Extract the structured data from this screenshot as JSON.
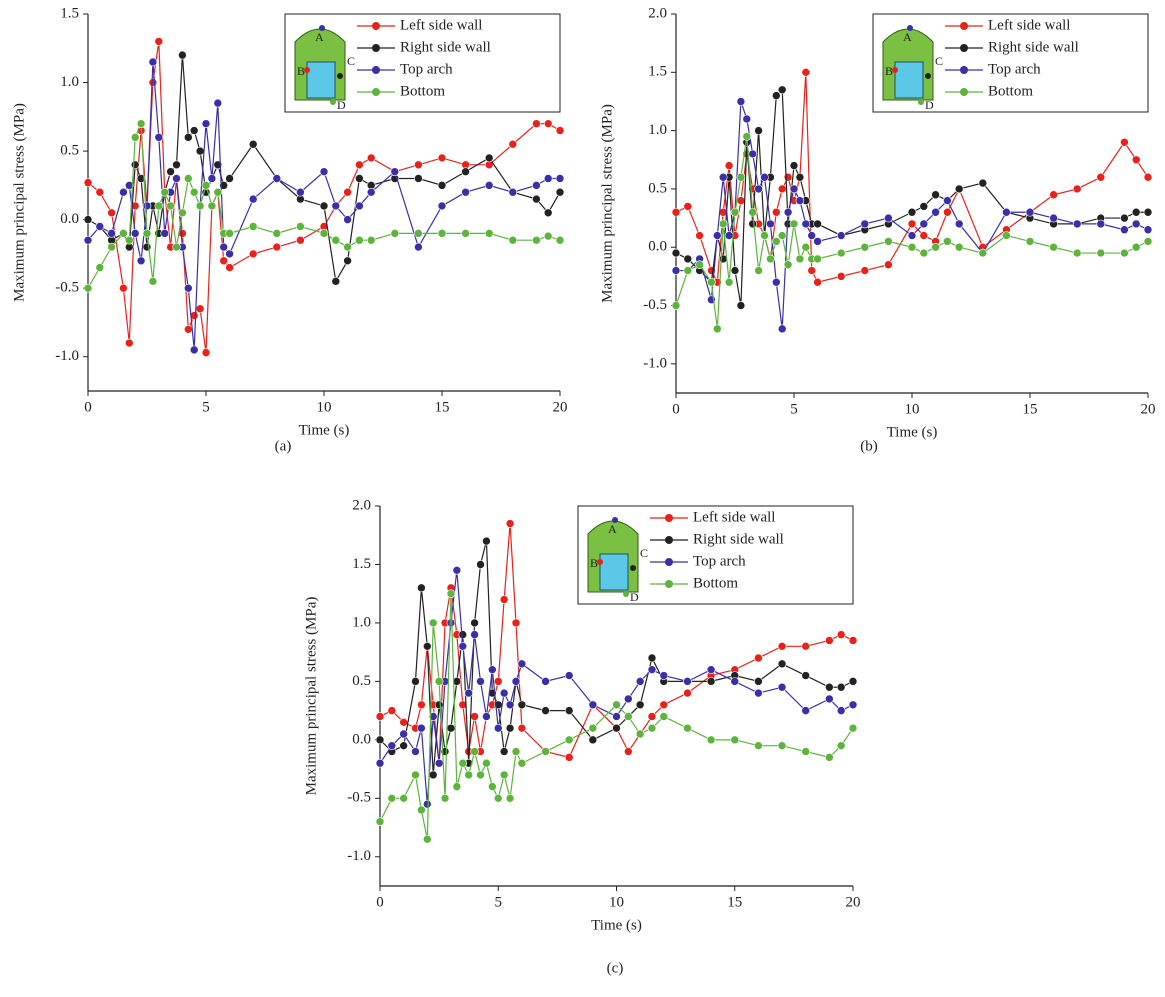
{
  "chart_data": [
    {
      "type": "line",
      "caption": "(a)",
      "x_label": "Time (s)",
      "y_label": "Maximum principal stress (MPa)",
      "inset_labels": [
        "A",
        "B",
        "C",
        "D"
      ],
      "legend": "upper right",
      "xlim": [
        0,
        20
      ],
      "xticks": [
        0,
        5,
        10,
        15,
        20
      ],
      "ylim": [
        -1.25,
        1.5
      ],
      "yticks": [
        {
          "value": -1,
          "label": "-1.0"
        },
        -0.5,
        {
          "value": 0,
          "label": "0.0"
        },
        0.5,
        {
          "value": 1,
          "label": "1.0"
        },
        1.5
      ],
      "x": [
        0,
        0.5,
        1,
        1.5,
        1.75,
        2,
        2.25,
        2.5,
        2.75,
        3,
        3.25,
        3.5,
        3.75,
        4,
        4.25,
        4.5,
        4.75,
        5,
        5.25,
        5.5,
        5.75,
        6,
        7,
        8,
        9,
        10,
        10.5,
        11,
        11.5,
        12,
        13,
        14,
        15,
        16,
        17,
        18,
        19,
        19.5,
        20
      ],
      "series": [
        {
          "name": "Left side wall",
          "color": "#e8221b",
          "values": [
            0.27,
            0.2,
            0.05,
            -0.5,
            -0.9,
            0.1,
            0.65,
            0.1,
            1.0,
            1.3,
            0.2,
            -0.2,
            0.3,
            -0.1,
            -0.8,
            -0.7,
            -0.65,
            -0.97,
            0.1,
            0.2,
            -0.3,
            -0.35,
            -0.25,
            -0.2,
            -0.15,
            -0.05,
            0.1,
            0.2,
            0.4,
            0.45,
            0.35,
            0.4,
            0.45,
            0.4,
            0.4,
            0.55,
            0.7,
            0.7,
            0.65
          ]
        },
        {
          "name": "Right side wall",
          "color": "#222222",
          "values": [
            0,
            -0.05,
            -0.15,
            -0.1,
            -0.2,
            0.4,
            0.3,
            -0.2,
            0.1,
            -0.1,
            0.2,
            0.35,
            0.4,
            1.2,
            0.6,
            0.65,
            0.5,
            0.2,
            0.3,
            0.4,
            0.25,
            0.3,
            0.55,
            0.3,
            0.15,
            0.1,
            -0.45,
            -0.3,
            0.3,
            0.25,
            0.3,
            0.3,
            0.25,
            0.35,
            0.45,
            0.2,
            0.15,
            0.05,
            0.2
          ]
        },
        {
          "name": "Top arch",
          "color": "#3a2fa8",
          "values": [
            -0.15,
            -0.05,
            -0.1,
            0.2,
            0.25,
            -0.1,
            -0.3,
            0.1,
            1.15,
            0.6,
            -0.1,
            0.2,
            0.3,
            -0.2,
            -0.5,
            -0.95,
            0.1,
            0.7,
            0.3,
            0.85,
            -0.2,
            -0.25,
            0.15,
            0.3,
            0.2,
            0.35,
            0.1,
            0,
            0.1,
            0.2,
            0.35,
            -0.2,
            0.1,
            0.2,
            0.25,
            0.2,
            0.25,
            0.3,
            0.3
          ]
        },
        {
          "name": "Bottom",
          "color": "#5cb43c",
          "values": [
            -0.5,
            -0.35,
            -0.2,
            -0.1,
            -0.15,
            0.6,
            0.7,
            -0.1,
            -0.45,
            0.1,
            0.2,
            0.1,
            -0.2,
            0.05,
            0.3,
            0.2,
            0.1,
            0.25,
            0.1,
            0.2,
            -0.1,
            -0.1,
            -0.05,
            -0.1,
            -0.05,
            -0.1,
            -0.15,
            -0.2,
            -0.15,
            -0.15,
            -0.1,
            -0.1,
            -0.1,
            -0.1,
            -0.1,
            -0.15,
            -0.15,
            -0.12,
            -0.15
          ]
        }
      ]
    },
    {
      "type": "line",
      "caption": "(b)",
      "x_label": "Time (s)",
      "y_label": "Maximum principal stress (MPa)",
      "inset_labels": [
        "A",
        "B",
        "C",
        "D"
      ],
      "legend": "upper right",
      "xlim": [
        0,
        20
      ],
      "xticks": [
        0,
        5,
        10,
        15,
        20
      ],
      "ylim": [
        -1.25,
        2
      ],
      "yticks": [
        {
          "value": -1,
          "label": "-1.0"
        },
        -0.5,
        {
          "value": 0,
          "label": "0.0"
        },
        0.5,
        {
          "value": 1,
          "label": "1.0"
        },
        1.5,
        {
          "value": 2,
          "label": "2.0"
        }
      ],
      "x": [
        0,
        0.5,
        1,
        1.5,
        1.75,
        2,
        2.25,
        2.5,
        2.75,
        3,
        3.25,
        3.5,
        3.75,
        4,
        4.25,
        4.5,
        4.75,
        5,
        5.25,
        5.5,
        5.75,
        6,
        7,
        8,
        9,
        10,
        10.5,
        11,
        11.5,
        12,
        13,
        14,
        15,
        16,
        17,
        18,
        19,
        19.5,
        20
      ],
      "series": [
        {
          "name": "Left side wall",
          "color": "#e8221b",
          "values": [
            0.3,
            0.35,
            0.1,
            -0.2,
            -0.3,
            0.3,
            0.7,
            0.1,
            0.4,
            0.8,
            0.5,
            0.2,
            0.1,
            -0.1,
            0.3,
            0.5,
            0.6,
            0.4,
            0.6,
            1.5,
            -0.2,
            -0.3,
            -0.25,
            -0.2,
            -0.15,
            0.2,
            0.1,
            0.05,
            0.3,
            0.5,
            0,
            0.15,
            0.3,
            0.45,
            0.5,
            0.6,
            0.9,
            0.75,
            0.6
          ]
        },
        {
          "name": "Right side wall",
          "color": "#222222",
          "values": [
            -0.05,
            -0.1,
            -0.2,
            -0.3,
            0.1,
            -0.1,
            0.6,
            -0.2,
            -0.5,
            0.9,
            0.2,
            1.0,
            0.1,
            0.6,
            1.3,
            1.35,
            0.2,
            0.7,
            0.6,
            0.4,
            0.2,
            0.2,
            0.1,
            0.15,
            0.2,
            0.3,
            0.35,
            0.45,
            0.4,
            0.5,
            0.55,
            0.3,
            0.25,
            0.2,
            0.2,
            0.25,
            0.25,
            0.3,
            0.3
          ]
        },
        {
          "name": "Top arch",
          "color": "#3a2fa8",
          "values": [
            -0.2,
            -0.2,
            -0.1,
            -0.45,
            0.1,
            0.6,
            0.1,
            0.3,
            1.25,
            1.1,
            0.8,
            0.5,
            0.6,
            0.2,
            -0.3,
            -0.7,
            0.3,
            0.5,
            0.4,
            0.2,
            0.1,
            0.05,
            0.1,
            0.2,
            0.25,
            0.1,
            0.2,
            0.3,
            0.4,
            0.2,
            -0.05,
            0.3,
            0.3,
            0.25,
            0.2,
            0.2,
            0.15,
            0.2,
            0.15
          ]
        },
        {
          "name": "Bottom",
          "color": "#5cb43c",
          "values": [
            -0.5,
            -0.2,
            -0.15,
            -0.3,
            -0.7,
            0.2,
            -0.3,
            0.3,
            0.6,
            0.95,
            0.3,
            -0.2,
            0.1,
            -0.1,
            0.05,
            0.1,
            -0.15,
            0.2,
            -0.1,
            0,
            -0.1,
            -0.1,
            -0.05,
            0,
            0.05,
            0,
            -0.05,
            0,
            0.05,
            0,
            -0.05,
            0.1,
            0.05,
            0,
            -0.05,
            -0.05,
            -0.05,
            0,
            0.05
          ]
        }
      ]
    },
    {
      "type": "line",
      "caption": "(c)",
      "x_label": "Time (s)",
      "y_label": "Maximum principal stress (MPa)",
      "inset_labels": [
        "A",
        "B",
        "C",
        "D"
      ],
      "legend": "upper right",
      "xlim": [
        0,
        20
      ],
      "xticks": [
        0,
        5,
        10,
        15,
        20
      ],
      "ylim": [
        -1.25,
        2
      ],
      "yticks": [
        {
          "value": -1,
          "label": "-1.0"
        },
        -0.5,
        {
          "value": 0,
          "label": "0.0"
        },
        0.5,
        {
          "value": 1,
          "label": "1.0"
        },
        1.5,
        {
          "value": 2,
          "label": "2.0"
        }
      ],
      "x": [
        0,
        0.5,
        1,
        1.5,
        1.75,
        2,
        2.25,
        2.5,
        2.75,
        3,
        3.25,
        3.5,
        3.75,
        4,
        4.25,
        4.5,
        4.75,
        5,
        5.25,
        5.5,
        5.75,
        6,
        7,
        8,
        9,
        10,
        10.5,
        11,
        11.5,
        12,
        13,
        14,
        15,
        16,
        17,
        18,
        19,
        19.5,
        20
      ],
      "series": [
        {
          "name": "Left side wall",
          "color": "#e8221b",
          "values": [
            0.2,
            0.25,
            0.15,
            0.1,
            0.3,
            0.8,
            0.3,
            -0.2,
            1.0,
            1.3,
            0.9,
            0.3,
            -0.1,
            0.2,
            -0.1,
            0.2,
            0.3,
            0.5,
            1.2,
            1.85,
            1.0,
            0.1,
            -0.1,
            -0.15,
            0.3,
            0.1,
            -0.1,
            0.05,
            0.2,
            0.3,
            0.4,
            0.55,
            0.6,
            0.7,
            0.8,
            0.8,
            0.85,
            0.9,
            0.85
          ]
        },
        {
          "name": "Right side wall",
          "color": "#222222",
          "values": [
            0,
            -0.1,
            -0.05,
            0.5,
            1.3,
            0.8,
            -0.3,
            0.3,
            -0.1,
            0.1,
            0.5,
            0.9,
            -0.2,
            1.0,
            1.5,
            1.7,
            0.4,
            0.3,
            -0.1,
            0.1,
            0.5,
            0.3,
            0.25,
            0.25,
            0,
            0.1,
            0.2,
            0.3,
            0.7,
            0.5,
            0.5,
            0.5,
            0.55,
            0.5,
            0.65,
            0.55,
            0.45,
            0.45,
            0.5
          ]
        },
        {
          "name": "Top arch",
          "color": "#3a2fa8",
          "values": [
            -0.2,
            -0.05,
            0.05,
            -0.1,
            0.1,
            -0.55,
            0.2,
            -0.2,
            0.5,
            1.0,
            1.45,
            0.8,
            0.4,
            0.9,
            0.5,
            0.2,
            0.6,
            0.1,
            0.4,
            0.3,
            0.5,
            0.65,
            0.5,
            0.55,
            0.3,
            0.2,
            0.35,
            0.5,
            0.6,
            0.55,
            0.5,
            0.6,
            0.5,
            0.4,
            0.45,
            0.25,
            0.35,
            0.25,
            0.3
          ]
        },
        {
          "name": "Bottom",
          "color": "#5cb43c",
          "values": [
            -0.7,
            -0.5,
            -0.5,
            -0.3,
            -0.6,
            -0.85,
            1.0,
            0.5,
            -0.5,
            1.25,
            -0.4,
            -0.2,
            -0.3,
            -0.1,
            -0.3,
            -0.2,
            -0.4,
            -0.5,
            -0.3,
            -0.5,
            -0.1,
            -0.2,
            -0.1,
            0,
            0.1,
            0.3,
            0.2,
            0.05,
            0.1,
            0.2,
            0.1,
            0,
            0,
            -0.05,
            -0.05,
            -0.1,
            -0.15,
            -0.05,
            0.1
          ]
        }
      ]
    }
  ]
}
